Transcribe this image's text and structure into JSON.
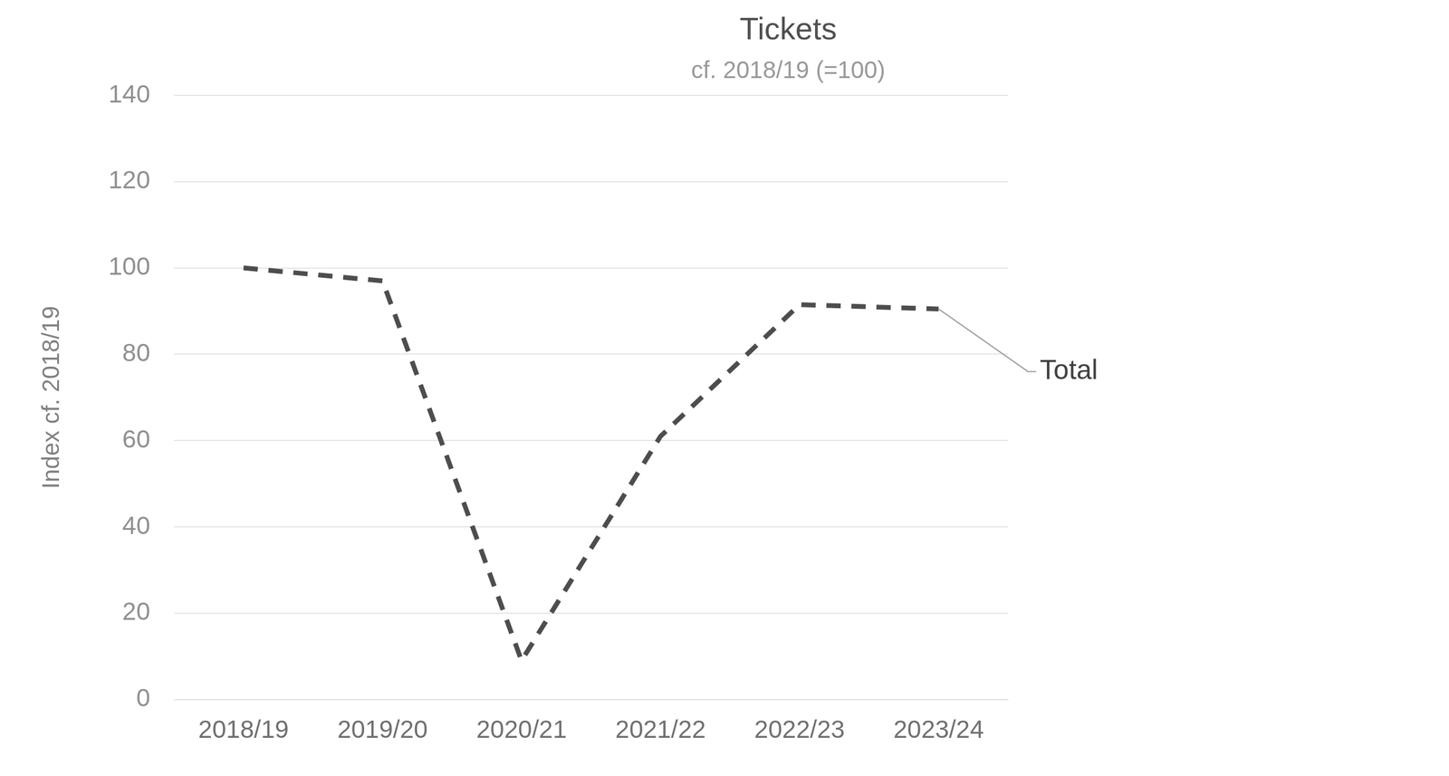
{
  "chart_data": {
    "type": "line",
    "title": "Tickets",
    "subtitle": "cf. 2018/19 (=100)",
    "y_label": "Index cf. 2018/19",
    "categories": [
      "2018/19",
      "2019/20",
      "2020/21",
      "2021/22",
      "2022/23",
      "2023/24"
    ],
    "series": [
      {
        "name": "Total",
        "color": "#4d4d4d",
        "line_style": "dashed",
        "values": [
          100,
          97,
          9,
          61,
          91.5,
          90.5
        ]
      }
    ],
    "ylim": [
      0,
      140
    ],
    "yticks": [
      0,
      20,
      40,
      60,
      80,
      100,
      120,
      140
    ],
    "grid": true
  }
}
